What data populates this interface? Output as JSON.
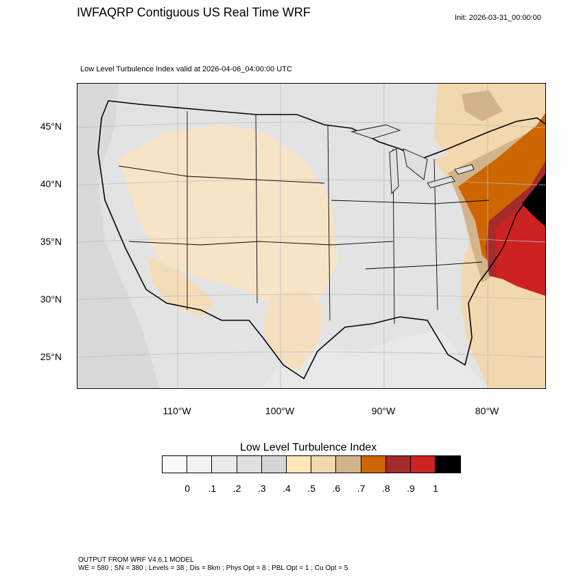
{
  "header": {
    "title": "IWFAQRP Contiguous US Real Time WRF",
    "init": "Init: 2026-03-31_00:00:00",
    "subtitle": "Low Level Turbulence Index valid at 2026-04-06_04:00:00 UTC"
  },
  "map": {
    "lat_labels": [
      "45°N",
      "40°N",
      "35°N",
      "30°N",
      "25°N"
    ],
    "lon_labels": [
      "110°W",
      "100°W",
      "90°W",
      "80°W"
    ]
  },
  "colorbar": {
    "title": "Low Level Turbulence Index",
    "colors": [
      "#fafafa",
      "#f3f3f3",
      "#eaeaea",
      "#e0e0e0",
      "#d6d6d6",
      "#ffe7b8",
      "#f2d8ae",
      "#d3b48a",
      "#cc6600",
      "#a52a2a",
      "#cc2222",
      "#000000"
    ],
    "labels": [
      "0",
      ".1",
      ".2",
      ".3",
      ".4",
      ".5",
      ".6",
      ".7",
      ".8",
      ".9",
      "1"
    ]
  },
  "footer": {
    "line1": "OUTPUT FROM WRF V4.6.1 MODEL",
    "line2": "WE = 580 ; SN = 380 ; Levels = 38 ; Dis = 8km ; Phys Opt = 8 ; PBL Opt = 1 ; Cu Opt = 5"
  }
}
